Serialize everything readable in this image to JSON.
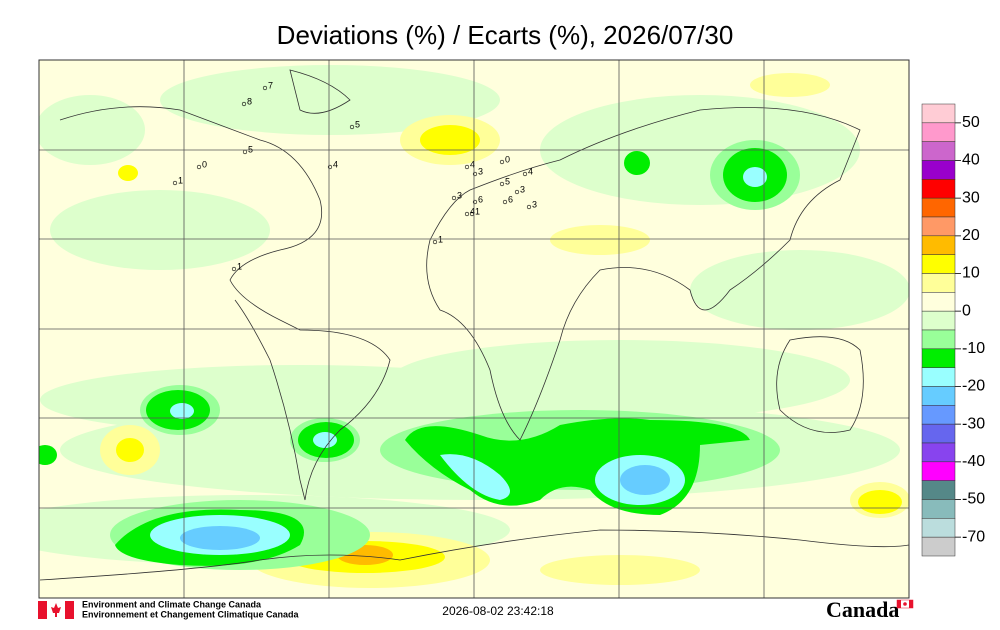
{
  "title": "Deviations (%) / Ecarts (%), 2026/07/30",
  "colorbar": {
    "colors": [
      "#ffccd5",
      "#ff99cc",
      "#cc66cc",
      "#9900cc",
      "#ff0000",
      "#ff6600",
      "#ff9966",
      "#ffbb00",
      "#ffff00",
      "#ffff99",
      "#ffffdd",
      "#ddffcc",
      "#99ff99",
      "#00ee00",
      "#99ffff",
      "#66ccff",
      "#6699ff",
      "#6666ee",
      "#8844ee",
      "#ff00ff",
      "#558888",
      "#88bbbb",
      "#bbdddd",
      "#cccccc"
    ],
    "ticks": [
      50,
      40,
      30,
      20,
      10,
      0,
      -10,
      -20,
      -30,
      -40,
      -50,
      -70
    ]
  },
  "stations": [
    "7",
    "8",
    "5",
    "5",
    "0",
    "1",
    "4",
    "1",
    "1",
    "4",
    "3",
    "0",
    "5",
    "4",
    "3",
    "3",
    "6",
    "4",
    "6",
    "3",
    "1"
  ],
  "footer": {
    "agency_en": "Environment and Climate Change Canada",
    "agency_fr": "Environnement et Changement Climatique Canada",
    "timestamp": "2026-08-02 23:42:18",
    "wordmark": "Canada"
  }
}
